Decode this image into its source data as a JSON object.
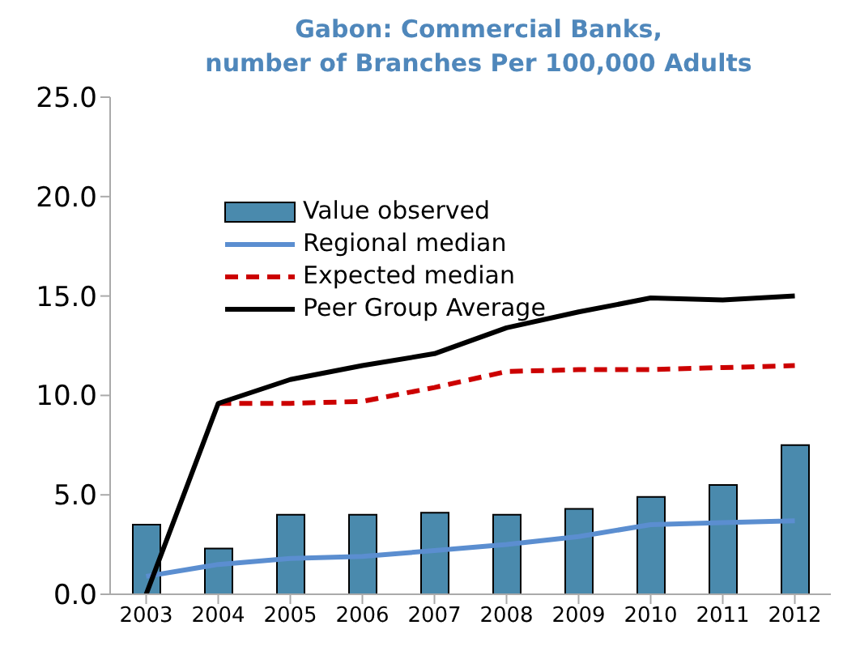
{
  "chart_data": {
    "type": "bar",
    "title": "Gabon: Commercial  Banks,\nnumber of Branches Per 100,000 Adults",
    "categories": [
      "2003",
      "2004",
      "2005",
      "2006",
      "2007",
      "2008",
      "2009",
      "2010",
      "2011",
      "2012"
    ],
    "series": [
      {
        "name": "Value observed",
        "color": "#4a8aad",
        "values": [
          3.5,
          2.3,
          4.0,
          4.0,
          4.1,
          4.0,
          4.3,
          4.9,
          5.5,
          7.5
        ]
      },
      {
        "name": "Regional median",
        "type": "line",
        "color": "#5b8ed0",
        "line_style": "solid",
        "values": [
          0.9,
          1.5,
          1.8,
          1.9,
          2.2,
          2.5,
          2.9,
          3.5,
          3.6,
          3.7
        ]
      },
      {
        "name": "Expected median",
        "type": "line",
        "color": "#cc0000",
        "line_style": "dashed",
        "values": [
          null,
          9.6,
          9.6,
          9.7,
          10.4,
          11.2,
          11.3,
          11.3,
          11.4,
          11.5
        ]
      },
      {
        "name": "Peer Group Average",
        "type": "line",
        "color": "#000000",
        "line_style": "solid",
        "values": [
          0,
          9.6,
          10.8,
          11.5,
          12.1,
          13.4,
          14.2,
          14.9,
          14.8,
          15.0
        ]
      }
    ],
    "ylim": [
      0,
      25
    ],
    "yticks": [
      {
        "value": 0,
        "label": "0.0"
      },
      {
        "value": 5,
        "label": "5.0"
      },
      {
        "value": 10,
        "label": "10.0"
      },
      {
        "value": 15,
        "label": "15.0"
      },
      {
        "value": 20,
        "label": "20.0"
      },
      {
        "value": 25,
        "label": "25.0"
      }
    ],
    "grid": false,
    "legend": "top left",
    "marker": "none"
  }
}
